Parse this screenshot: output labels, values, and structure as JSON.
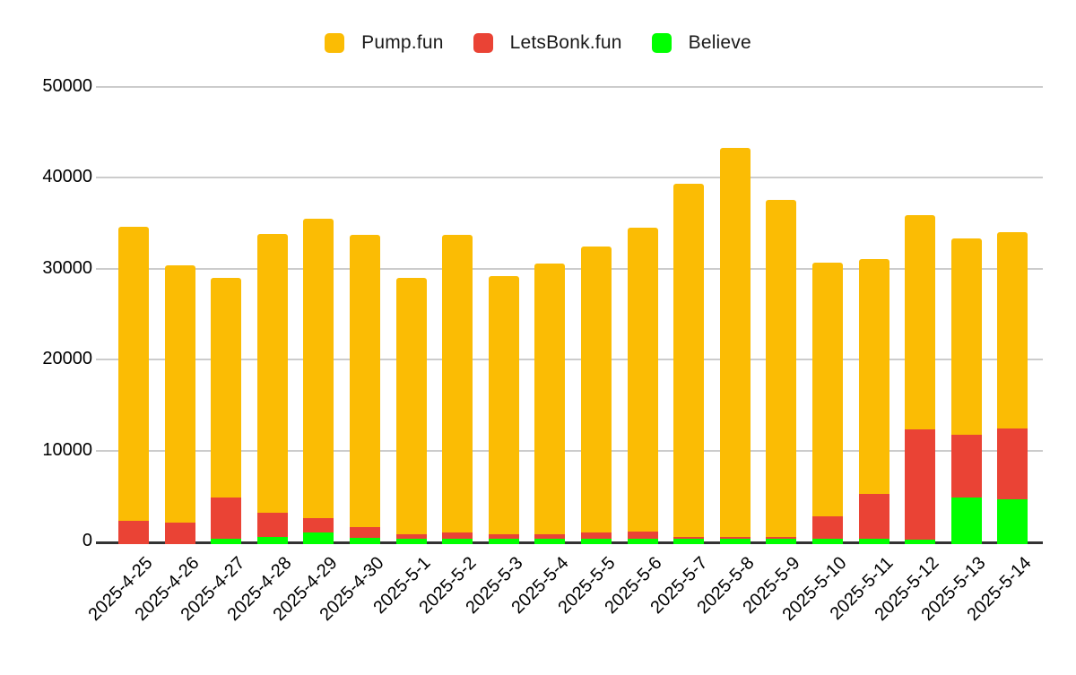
{
  "chart_data": {
    "type": "bar",
    "stacked": true,
    "title": "",
    "xlabel": "",
    "ylabel": "",
    "categories": [
      "2025-4-25",
      "2025-4-26",
      "2025-4-27",
      "2025-4-28",
      "2025-4-29",
      "2025-4-30",
      "2025-5-1",
      "2025-5-2",
      "2025-5-3",
      "2025-5-4",
      "2025-5-5",
      "2025-5-6",
      "2025-5-7",
      "2025-5-8",
      "2025-5-9",
      "2025-5-10",
      "2025-5-11",
      "2025-5-12",
      "2025-5-13",
      "2025-5-14"
    ],
    "series": [
      {
        "name": "Pump.fun",
        "color": "#FBBC04",
        "values": [
          32350,
          28300,
          24200,
          30700,
          32900,
          32100,
          28250,
          32750,
          28350,
          29800,
          31450,
          33450,
          38950,
          42850,
          37100,
          27900,
          25850,
          23550,
          21650,
          21550
        ]
      },
      {
        "name": "LetsBonk.fun",
        "color": "#EA4335",
        "values": [
          2300,
          2050,
          4500,
          2700,
          1600,
          1250,
          450,
          650,
          500,
          500,
          700,
          750,
          200,
          200,
          250,
          2550,
          5000,
          12100,
          6850,
          7800
        ]
      },
      {
        "name": "Believe",
        "color": "#00FF00",
        "values": [
          0,
          0,
          300,
          450,
          1000,
          350,
          300,
          300,
          300,
          250,
          300,
          300,
          250,
          250,
          250,
          250,
          250,
          200,
          4850,
          4650
        ]
      }
    ],
    "ylim": [
      0,
      50000
    ],
    "y_ticks": [
      0,
      10000,
      20000,
      30000,
      40000,
      50000
    ],
    "grid": true,
    "legend_position": "top",
    "grid_color": "#cccccc",
    "axis_color": "#333333",
    "label_color": "#000000"
  }
}
